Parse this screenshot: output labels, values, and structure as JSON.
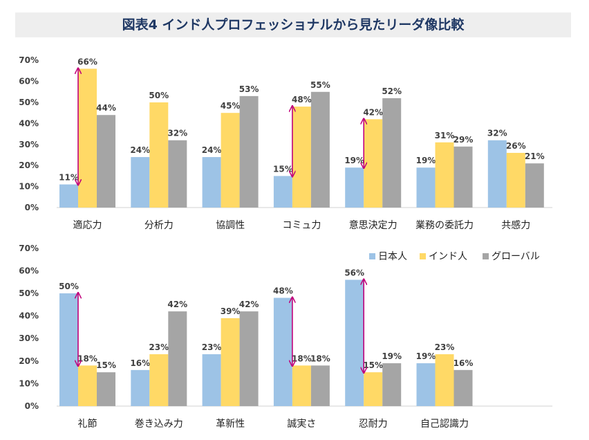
{
  "title": "図表4 インド人プロフェッショナルから見たリーダ像比較",
  "colors": {
    "japanese": "#9dc3e6",
    "indian": "#ffd966",
    "global": "#a5a5a5",
    "arrow": "#c0007a",
    "title_text": "#1f3864",
    "axis_text": "#404040"
  },
  "chart_data": [
    {
      "type": "bar",
      "ylim": [
        0,
        70
      ],
      "yticks": [
        "0%",
        "10%",
        "20%",
        "30%",
        "40%",
        "50%",
        "60%",
        "70%"
      ],
      "categories": [
        "適応力",
        "分析力",
        "協調性",
        "コミュ力",
        "意思決定力",
        "業務の委託力",
        "共感力"
      ],
      "series": [
        {
          "name": "日本人",
          "values": [
            11,
            24,
            24,
            15,
            19,
            19,
            32
          ],
          "labels": [
            "11%",
            "24%",
            "24%",
            "15%",
            "19%",
            "19%",
            "32%"
          ]
        },
        {
          "name": "インド人",
          "values": [
            66,
            50,
            45,
            48,
            42,
            31,
            26
          ],
          "labels": [
            "66%",
            "50%",
            "45%",
            "48%",
            "42%",
            "31%",
            "26%"
          ]
        },
        {
          "name": "グローバル",
          "values": [
            44,
            32,
            53,
            55,
            52,
            29,
            21
          ],
          "labels": [
            "44%",
            "32%",
            "53%",
            "55%",
            "52%",
            "29%",
            "21%"
          ]
        }
      ],
      "gap_arrows": [
        0,
        3,
        4
      ]
    },
    {
      "type": "bar",
      "ylim": [
        0,
        70
      ],
      "yticks": [
        "0%",
        "10%",
        "20%",
        "30%",
        "40%",
        "50%",
        "60%",
        "70%"
      ],
      "categories": [
        "礼節",
        "巻き込み力",
        "革新性",
        "誠実さ",
        "忍耐力",
        "自己認識力"
      ],
      "series": [
        {
          "name": "日本人",
          "values": [
            50,
            16,
            23,
            48,
            56,
            19
          ],
          "labels": [
            "50%",
            "16%",
            "23%",
            "48%",
            "56%",
            "19%"
          ]
        },
        {
          "name": "インド人",
          "values": [
            18,
            23,
            39,
            18,
            15,
            23
          ],
          "labels": [
            "18%",
            "23%",
            "39%",
            "18%",
            "15%",
            "23%"
          ]
        },
        {
          "name": "グローバル",
          "values": [
            15,
            42,
            42,
            18,
            19,
            16
          ],
          "labels": [
            "15%",
            "42%",
            "42%",
            "18%",
            "19%",
            "16%"
          ]
        }
      ],
      "gap_arrows": [
        0,
        3,
        4
      ],
      "legend": [
        "日本人",
        "インド人",
        "グローバル"
      ]
    }
  ]
}
